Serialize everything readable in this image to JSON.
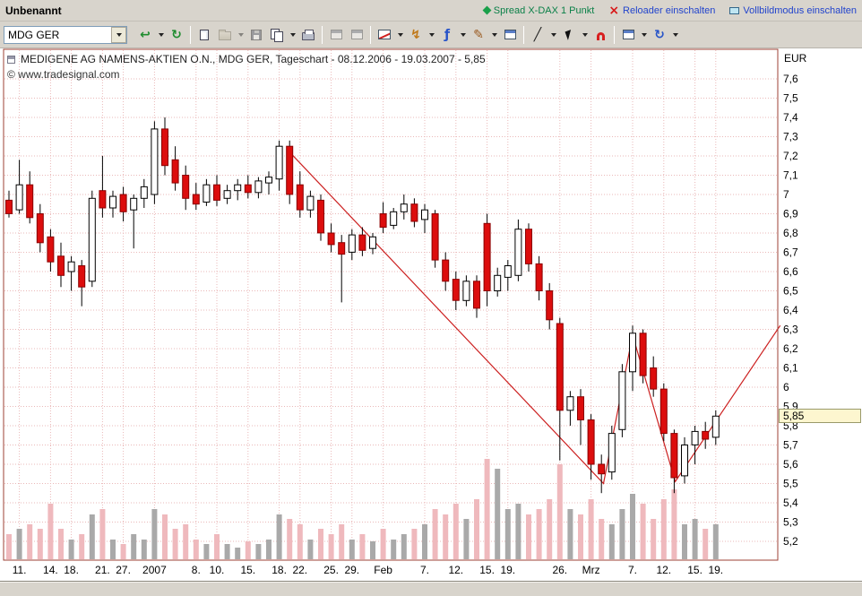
{
  "titlebar": {
    "document_title": "Unbenannt",
    "links": [
      {
        "label": "Spread X-DAX 1 Punkt",
        "color": "#0b8048"
      },
      {
        "label": "Reloader einschalten",
        "color": "#2244cc"
      },
      {
        "label": "Vollbildmodus einschalten",
        "color": "#2244cc"
      }
    ]
  },
  "toolbar": {
    "symbol_value": "MDG GER"
  },
  "icons": {
    "insert_symbol": "↩",
    "refresh_symbol": "↻",
    "indicator": "↯",
    "strategy": "ƒ",
    "draw_pen": "✎",
    "line_tool": "╱",
    "reload": "↻",
    "reloader_x": "×"
  },
  "chart": {
    "title": "MEDIGENE AG NAMENS-AKTIEN O.N., MDG GER, Tageschart - 08.12.2006 - 19.03.2007 - 5,85",
    "copyright": "© www.tradesignal.com",
    "currency": "EUR",
    "last_price_label": "5,85"
  },
  "chart_data": {
    "type": "candlestick",
    "instrument": "MEDIGENE AG NAMENS-AKTIEN O.N.",
    "symbol": "MDG GER",
    "timeframe": "Tageschart",
    "start_date": "08.12.2006",
    "end_date": "19.03.2007",
    "last_price": 5.85,
    "currency": "EUR",
    "ylim": [
      5.1,
      7.75
    ],
    "grid": true,
    "y_ticks": [
      {
        "value": 7.6,
        "label": "7,6"
      },
      {
        "value": 7.5,
        "label": "7,5"
      },
      {
        "value": 7.4,
        "label": "7,4"
      },
      {
        "value": 7.3,
        "label": "7,3"
      },
      {
        "value": 7.2,
        "label": "7,2"
      },
      {
        "value": 7.1,
        "label": "7,1"
      },
      {
        "value": 7.0,
        "label": "7"
      },
      {
        "value": 6.9,
        "label": "6,9"
      },
      {
        "value": 6.8,
        "label": "6,8"
      },
      {
        "value": 6.7,
        "label": "6,7"
      },
      {
        "value": 6.6,
        "label": "6,6"
      },
      {
        "value": 6.5,
        "label": "6,5"
      },
      {
        "value": 6.4,
        "label": "6,4"
      },
      {
        "value": 6.3,
        "label": "6,3"
      },
      {
        "value": 6.2,
        "label": "6,2"
      },
      {
        "value": 6.1,
        "label": "6,1"
      },
      {
        "value": 6.0,
        "label": "6"
      },
      {
        "value": 5.9,
        "label": "5,9"
      },
      {
        "value": 5.8,
        "label": "5,8"
      },
      {
        "value": 5.7,
        "label": "5,7"
      },
      {
        "value": 5.6,
        "label": "5,6"
      },
      {
        "value": 5.5,
        "label": "5,5"
      },
      {
        "value": 5.4,
        "label": "5,4"
      },
      {
        "value": 5.3,
        "label": "5,3"
      },
      {
        "value": 5.2,
        "label": "5,2"
      }
    ],
    "x_labels": [
      {
        "label": "11.",
        "index": 1
      },
      {
        "label": "14.",
        "index": 4
      },
      {
        "label": "18.",
        "index": 6
      },
      {
        "label": "21.",
        "index": 9
      },
      {
        "label": "27.",
        "index": 11
      },
      {
        "label": "2007",
        "index": 14
      },
      {
        "label": "8.",
        "index": 18
      },
      {
        "label": "10.",
        "index": 20
      },
      {
        "label": "15.",
        "index": 23
      },
      {
        "label": "18.",
        "index": 26
      },
      {
        "label": "22.",
        "index": 28
      },
      {
        "label": "25.",
        "index": 31
      },
      {
        "label": "29.",
        "index": 33
      },
      {
        "label": "Feb",
        "index": 36
      },
      {
        "label": "7.",
        "index": 40
      },
      {
        "label": "12.",
        "index": 43
      },
      {
        "label": "15.",
        "index": 46
      },
      {
        "label": "19.",
        "index": 48
      },
      {
        "label": "26.",
        "index": 53
      },
      {
        "label": "Mrz",
        "index": 56
      },
      {
        "label": "7.",
        "index": 60
      },
      {
        "label": "12.",
        "index": 63
      },
      {
        "label": "15.",
        "index": 66
      },
      {
        "label": "19.",
        "index": 68
      }
    ],
    "candles": [
      [
        6.97,
        7.02,
        6.88,
        6.9
      ],
      [
        6.92,
        7.18,
        6.9,
        7.05
      ],
      [
        7.05,
        7.12,
        6.85,
        6.88
      ],
      [
        6.9,
        6.95,
        6.7,
        6.75
      ],
      [
        6.78,
        6.82,
        6.6,
        6.65
      ],
      [
        6.68,
        6.75,
        6.52,
        6.58
      ],
      [
        6.6,
        6.68,
        6.5,
        6.65
      ],
      [
        6.63,
        6.66,
        6.42,
        6.52
      ],
      [
        6.55,
        7.02,
        6.52,
        6.98
      ],
      [
        7.02,
        7.2,
        6.88,
        6.93
      ],
      [
        6.93,
        7.02,
        6.88,
        6.99
      ],
      [
        7.0,
        7.04,
        6.86,
        6.91
      ],
      [
        6.92,
        7.0,
        6.72,
        6.98
      ],
      [
        6.98,
        7.08,
        6.93,
        7.04
      ],
      [
        7.0,
        7.38,
        6.95,
        7.34
      ],
      [
        7.34,
        7.4,
        7.1,
        7.15
      ],
      [
        7.18,
        7.25,
        7.02,
        7.06
      ],
      [
        7.1,
        7.15,
        6.92,
        6.98
      ],
      [
        7.0,
        7.06,
        6.92,
        6.95
      ],
      [
        6.96,
        7.08,
        6.94,
        7.05
      ],
      [
        7.05,
        7.1,
        6.94,
        6.97
      ],
      [
        6.98,
        7.05,
        6.95,
        7.02
      ],
      [
        7.02,
        7.08,
        6.97,
        7.05
      ],
      [
        7.05,
        7.1,
        6.98,
        7.01
      ],
      [
        7.01,
        7.09,
        6.98,
        7.07
      ],
      [
        7.06,
        7.12,
        7.0,
        7.09
      ],
      [
        7.08,
        7.28,
        7.02,
        7.25
      ],
      [
        7.25,
        7.28,
        6.95,
        7.0
      ],
      [
        7.05,
        7.12,
        6.88,
        6.92
      ],
      [
        6.92,
        7.02,
        6.88,
        6.99
      ],
      [
        6.97,
        7.0,
        6.76,
        6.8
      ],
      [
        6.8,
        6.85,
        6.7,
        6.74
      ],
      [
        6.75,
        6.79,
        6.44,
        6.69
      ],
      [
        6.7,
        6.82,
        6.66,
        6.79
      ],
      [
        6.79,
        6.83,
        6.68,
        6.71
      ],
      [
        6.72,
        6.8,
        6.69,
        6.78
      ],
      [
        6.9,
        6.96,
        6.8,
        6.83
      ],
      [
        6.84,
        6.93,
        6.82,
        6.91
      ],
      [
        6.91,
        7.0,
        6.87,
        6.95
      ],
      [
        6.95,
        6.98,
        6.83,
        6.86
      ],
      [
        6.87,
        6.95,
        6.8,
        6.92
      ],
      [
        6.9,
        6.92,
        6.62,
        6.66
      ],
      [
        6.66,
        6.7,
        6.5,
        6.55
      ],
      [
        6.56,
        6.6,
        6.4,
        6.45
      ],
      [
        6.45,
        6.58,
        6.42,
        6.55
      ],
      [
        6.55,
        6.58,
        6.36,
        6.41
      ],
      [
        6.85,
        6.9,
        6.42,
        6.5
      ],
      [
        6.5,
        6.62,
        6.47,
        6.58
      ],
      [
        6.57,
        6.66,
        6.5,
        6.63
      ],
      [
        6.58,
        6.87,
        6.55,
        6.82
      ],
      [
        6.82,
        6.85,
        6.6,
        6.64
      ],
      [
        6.64,
        6.68,
        6.45,
        6.5
      ],
      [
        6.5,
        6.54,
        6.3,
        6.35
      ],
      [
        6.33,
        6.36,
        5.62,
        5.88
      ],
      [
        5.88,
        5.98,
        5.8,
        5.95
      ],
      [
        5.95,
        5.99,
        5.7,
        5.83
      ],
      [
        5.83,
        5.86,
        5.52,
        5.6
      ],
      [
        5.6,
        5.65,
        5.45,
        5.55
      ],
      [
        5.56,
        5.8,
        5.52,
        5.76
      ],
      [
        5.78,
        6.12,
        5.74,
        6.08
      ],
      [
        6.08,
        6.32,
        5.98,
        6.28
      ],
      [
        6.28,
        6.3,
        6.02,
        6.06
      ],
      [
        6.1,
        6.16,
        5.95,
        5.99
      ],
      [
        5.99,
        6.02,
        5.72,
        5.76
      ],
      [
        5.76,
        5.78,
        5.45,
        5.53
      ],
      [
        5.54,
        5.74,
        5.5,
        5.7
      ],
      [
        5.7,
        5.8,
        5.6,
        5.77
      ],
      [
        5.77,
        5.82,
        5.68,
        5.73
      ],
      [
        5.74,
        5.88,
        5.7,
        5.85
      ]
    ],
    "volume": [
      0.25,
      0.3,
      0.35,
      0.3,
      0.55,
      0.3,
      0.2,
      0.25,
      0.45,
      0.5,
      0.2,
      0.15,
      0.25,
      0.2,
      0.5,
      0.45,
      0.3,
      0.35,
      0.2,
      0.15,
      0.25,
      0.15,
      0.12,
      0.18,
      0.15,
      0.2,
      0.45,
      0.4,
      0.35,
      0.2,
      0.3,
      0.25,
      0.35,
      0.2,
      0.25,
      0.18,
      0.3,
      0.2,
      0.25,
      0.3,
      0.35,
      0.5,
      0.45,
      0.55,
      0.4,
      0.6,
      1.0,
      0.9,
      0.5,
      0.55,
      0.45,
      0.5,
      0.6,
      0.95,
      0.5,
      0.45,
      0.6,
      0.4,
      0.35,
      0.5,
      0.65,
      0.55,
      0.4,
      0.6,
      0.7,
      0.35,
      0.4,
      0.3,
      0.35
    ],
    "trendline": [
      [
        27,
        7.22
      ],
      [
        57.2,
        5.5
      ],
      [
        60,
        6.27
      ],
      [
        64.1,
        5.51
      ],
      [
        74.2,
        6.32
      ]
    ],
    "colors": {
      "up": "#ffffff",
      "down": "#dc0d0d",
      "down_border": "#8a0000",
      "wick": "#000000",
      "grid": "#eab8b8",
      "border": "#9c4036",
      "trend": "#cc2020",
      "vol_up": "#a9a9a9",
      "vol_down": "#efb9bd"
    }
  }
}
